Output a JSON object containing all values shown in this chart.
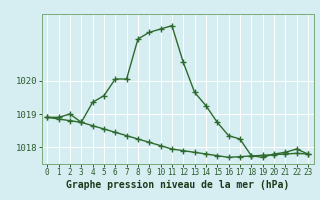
{
  "title": "Graphe pression niveau de la mer (hPa)",
  "background_color": "#d6eef2",
  "grid_color": "#ffffff",
  "line_color": "#2d6a2d",
  "hours": [
    0,
    1,
    2,
    3,
    4,
    5,
    6,
    7,
    8,
    9,
    10,
    11,
    12,
    13,
    14,
    15,
    16,
    17,
    18,
    19,
    20,
    21,
    22,
    23
  ],
  "pressure_main": [
    1018.9,
    1018.9,
    1019.0,
    1018.75,
    1019.35,
    1019.55,
    1020.05,
    1020.05,
    1021.25,
    1021.45,
    1021.55,
    1021.65,
    1020.55,
    1019.65,
    1019.25,
    1018.75,
    1018.35,
    1018.25,
    1017.75,
    1017.7,
    1017.8,
    1017.85,
    1017.95,
    1017.8
  ],
  "pressure_trend": [
    1018.9,
    1018.85,
    1018.8,
    1018.75,
    1018.65,
    1018.55,
    1018.45,
    1018.35,
    1018.25,
    1018.15,
    1018.05,
    1017.95,
    1017.9,
    1017.85,
    1017.8,
    1017.75,
    1017.7,
    1017.72,
    1017.74,
    1017.76,
    1017.78,
    1017.8,
    1017.82,
    1017.8
  ],
  "ylim": [
    1017.5,
    1022.0
  ],
  "yticks": [
    1018,
    1019,
    1020
  ],
  "ylabel_fontsize": 6.5,
  "xlabel_fontsize": 5.5,
  "title_fontsize": 7,
  "marker_size": 3,
  "line_width": 1.0,
  "fig_width": 3.2,
  "fig_height": 2.0,
  "dpi": 100
}
